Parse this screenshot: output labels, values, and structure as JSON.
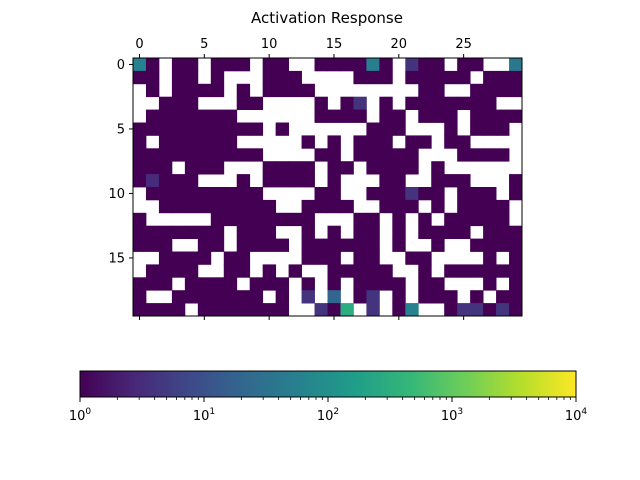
{
  "chart_data": {
    "type": "heatmap",
    "title": "Activation Response",
    "xlabel": "",
    "ylabel": "",
    "x_ticks": [
      0,
      5,
      10,
      15,
      20,
      25
    ],
    "y_ticks": [
      0,
      5,
      10,
      15
    ],
    "xlim": [
      -0.5,
      29.5
    ],
    "ylim": [
      19.5,
      -0.5
    ],
    "x_tick_position": "top",
    "grid": false,
    "n_rows": 20,
    "n_cols": 30,
    "masked_value": null,
    "colorbar": {
      "orientation": "horizontal",
      "placement": "bottom",
      "scale": "log",
      "range": [
        1,
        10000
      ],
      "colormap": "viridis",
      "major_ticks": [
        {
          "value": 1,
          "base": "10",
          "exp": "0"
        },
        {
          "value": 10,
          "base": "10",
          "exp": "1"
        },
        {
          "value": 100,
          "base": "10",
          "exp": "2"
        },
        {
          "value": 1000,
          "base": "10",
          "exp": "3"
        },
        {
          "value": 10000,
          "base": "10",
          "exp": "4"
        }
      ]
    },
    "colormap_stops": [
      "#440154",
      "#482878",
      "#3e4989",
      "#31688e",
      "#26828e",
      "#1f9e89",
      "#35b779",
      "#6ece58",
      "#b5de2b",
      "#fde725"
    ],
    "values": [
      [
        60,
        1,
        null,
        1,
        1,
        null,
        1,
        1,
        1,
        null,
        1,
        1,
        null,
        null,
        1,
        1,
        1,
        1,
        50,
        1,
        null,
        4,
        1,
        1,
        null,
        1,
        1,
        null,
        null,
        40
      ],
      [
        1,
        1,
        null,
        1,
        1,
        null,
        1,
        null,
        null,
        null,
        1,
        1,
        1,
        null,
        null,
        null,
        null,
        1,
        1,
        1,
        null,
        1,
        1,
        1,
        1,
        1,
        null,
        1,
        1,
        1
      ],
      [
        null,
        1,
        null,
        1,
        1,
        1,
        1,
        null,
        1,
        null,
        1,
        1,
        1,
        1,
        null,
        null,
        null,
        null,
        null,
        null,
        null,
        null,
        1,
        1,
        null,
        null,
        1,
        1,
        1,
        1
      ],
      [
        null,
        null,
        1,
        1,
        1,
        null,
        null,
        null,
        1,
        1,
        null,
        null,
        null,
        null,
        1,
        null,
        1,
        4,
        null,
        1,
        null,
        1,
        1,
        1,
        1,
        1,
        1,
        1,
        null,
        null
      ],
      [
        null,
        1,
        1,
        1,
        1,
        1,
        1,
        1,
        null,
        null,
        null,
        null,
        null,
        null,
        1,
        1,
        1,
        1,
        null,
        1,
        1,
        null,
        1,
        1,
        1,
        null,
        1,
        1,
        1,
        1
      ],
      [
        1,
        1,
        1,
        1,
        1,
        1,
        1,
        1,
        1,
        1,
        null,
        1,
        null,
        null,
        null,
        null,
        null,
        null,
        1,
        1,
        1,
        null,
        null,
        null,
        1,
        null,
        1,
        1,
        1,
        null
      ],
      [
        1,
        null,
        1,
        1,
        1,
        1,
        1,
        1,
        null,
        null,
        null,
        null,
        null,
        1,
        null,
        1,
        null,
        1,
        1,
        1,
        null,
        1,
        1,
        null,
        1,
        1,
        null,
        null,
        null,
        null
      ],
      [
        1,
        1,
        1,
        1,
        1,
        1,
        1,
        1,
        1,
        1,
        null,
        null,
        null,
        null,
        1,
        1,
        null,
        1,
        1,
        1,
        1,
        1,
        null,
        null,
        null,
        1,
        1,
        1,
        1,
        null
      ],
      [
        1,
        1,
        1,
        null,
        1,
        1,
        1,
        null,
        null,
        null,
        1,
        1,
        1,
        1,
        null,
        1,
        1,
        null,
        1,
        1,
        1,
        1,
        null,
        1,
        null,
        null,
        null,
        null,
        null,
        null
      ],
      [
        1,
        3,
        1,
        1,
        1,
        null,
        null,
        null,
        1,
        null,
        1,
        1,
        1,
        1,
        null,
        1,
        null,
        null,
        null,
        1,
        1,
        null,
        null,
        1,
        1,
        1,
        null,
        null,
        null,
        1
      ],
      [
        null,
        1,
        1,
        1,
        1,
        1,
        1,
        1,
        1,
        1,
        null,
        null,
        null,
        null,
        1,
        1,
        null,
        null,
        1,
        1,
        1,
        4,
        1,
        1,
        null,
        1,
        1,
        1,
        null,
        1
      ],
      [
        null,
        null,
        1,
        1,
        1,
        1,
        1,
        1,
        1,
        1,
        1,
        null,
        null,
        1,
        1,
        1,
        1,
        null,
        null,
        1,
        1,
        1,
        null,
        1,
        null,
        1,
        1,
        1,
        1,
        null
      ],
      [
        1,
        null,
        null,
        null,
        null,
        null,
        1,
        1,
        1,
        1,
        1,
        1,
        1,
        1,
        null,
        null,
        null,
        1,
        1,
        null,
        1,
        null,
        1,
        null,
        1,
        1,
        1,
        1,
        1,
        null
      ],
      [
        1,
        1,
        1,
        1,
        1,
        1,
        1,
        null,
        1,
        1,
        1,
        null,
        null,
        1,
        null,
        1,
        null,
        1,
        1,
        null,
        1,
        null,
        1,
        1,
        1,
        1,
        null,
        1,
        1,
        1
      ],
      [
        1,
        1,
        1,
        null,
        null,
        1,
        1,
        null,
        1,
        1,
        1,
        1,
        null,
        1,
        1,
        1,
        1,
        1,
        1,
        null,
        1,
        null,
        null,
        1,
        null,
        null,
        1,
        1,
        1,
        1
      ],
      [
        null,
        null,
        1,
        1,
        1,
        1,
        null,
        1,
        1,
        null,
        null,
        null,
        null,
        1,
        1,
        1,
        null,
        1,
        1,
        null,
        null,
        1,
        1,
        null,
        null,
        null,
        null,
        1,
        null,
        1
      ],
      [
        null,
        1,
        1,
        1,
        1,
        null,
        null,
        1,
        1,
        null,
        1,
        null,
        1,
        null,
        null,
        1,
        1,
        1,
        1,
        1,
        null,
        null,
        1,
        null,
        1,
        1,
        1,
        1,
        1,
        1
      ],
      [
        1,
        1,
        1,
        null,
        1,
        1,
        1,
        1,
        null,
        1,
        1,
        1,
        null,
        1,
        null,
        1,
        null,
        1,
        1,
        1,
        1,
        null,
        1,
        1,
        null,
        null,
        null,
        1,
        null,
        1
      ],
      [
        1,
        null,
        null,
        1,
        1,
        1,
        1,
        1,
        1,
        1,
        null,
        1,
        null,
        4,
        null,
        20,
        null,
        1,
        4,
        null,
        1,
        null,
        1,
        1,
        1,
        null,
        1,
        null,
        1,
        1
      ],
      [
        1,
        1,
        1,
        1,
        null,
        1,
        1,
        1,
        1,
        1,
        1,
        1,
        null,
        null,
        4,
        1,
        300,
        null,
        4,
        null,
        1,
        60,
        null,
        null,
        1,
        4,
        4,
        1,
        4,
        1
      ]
    ]
  }
}
